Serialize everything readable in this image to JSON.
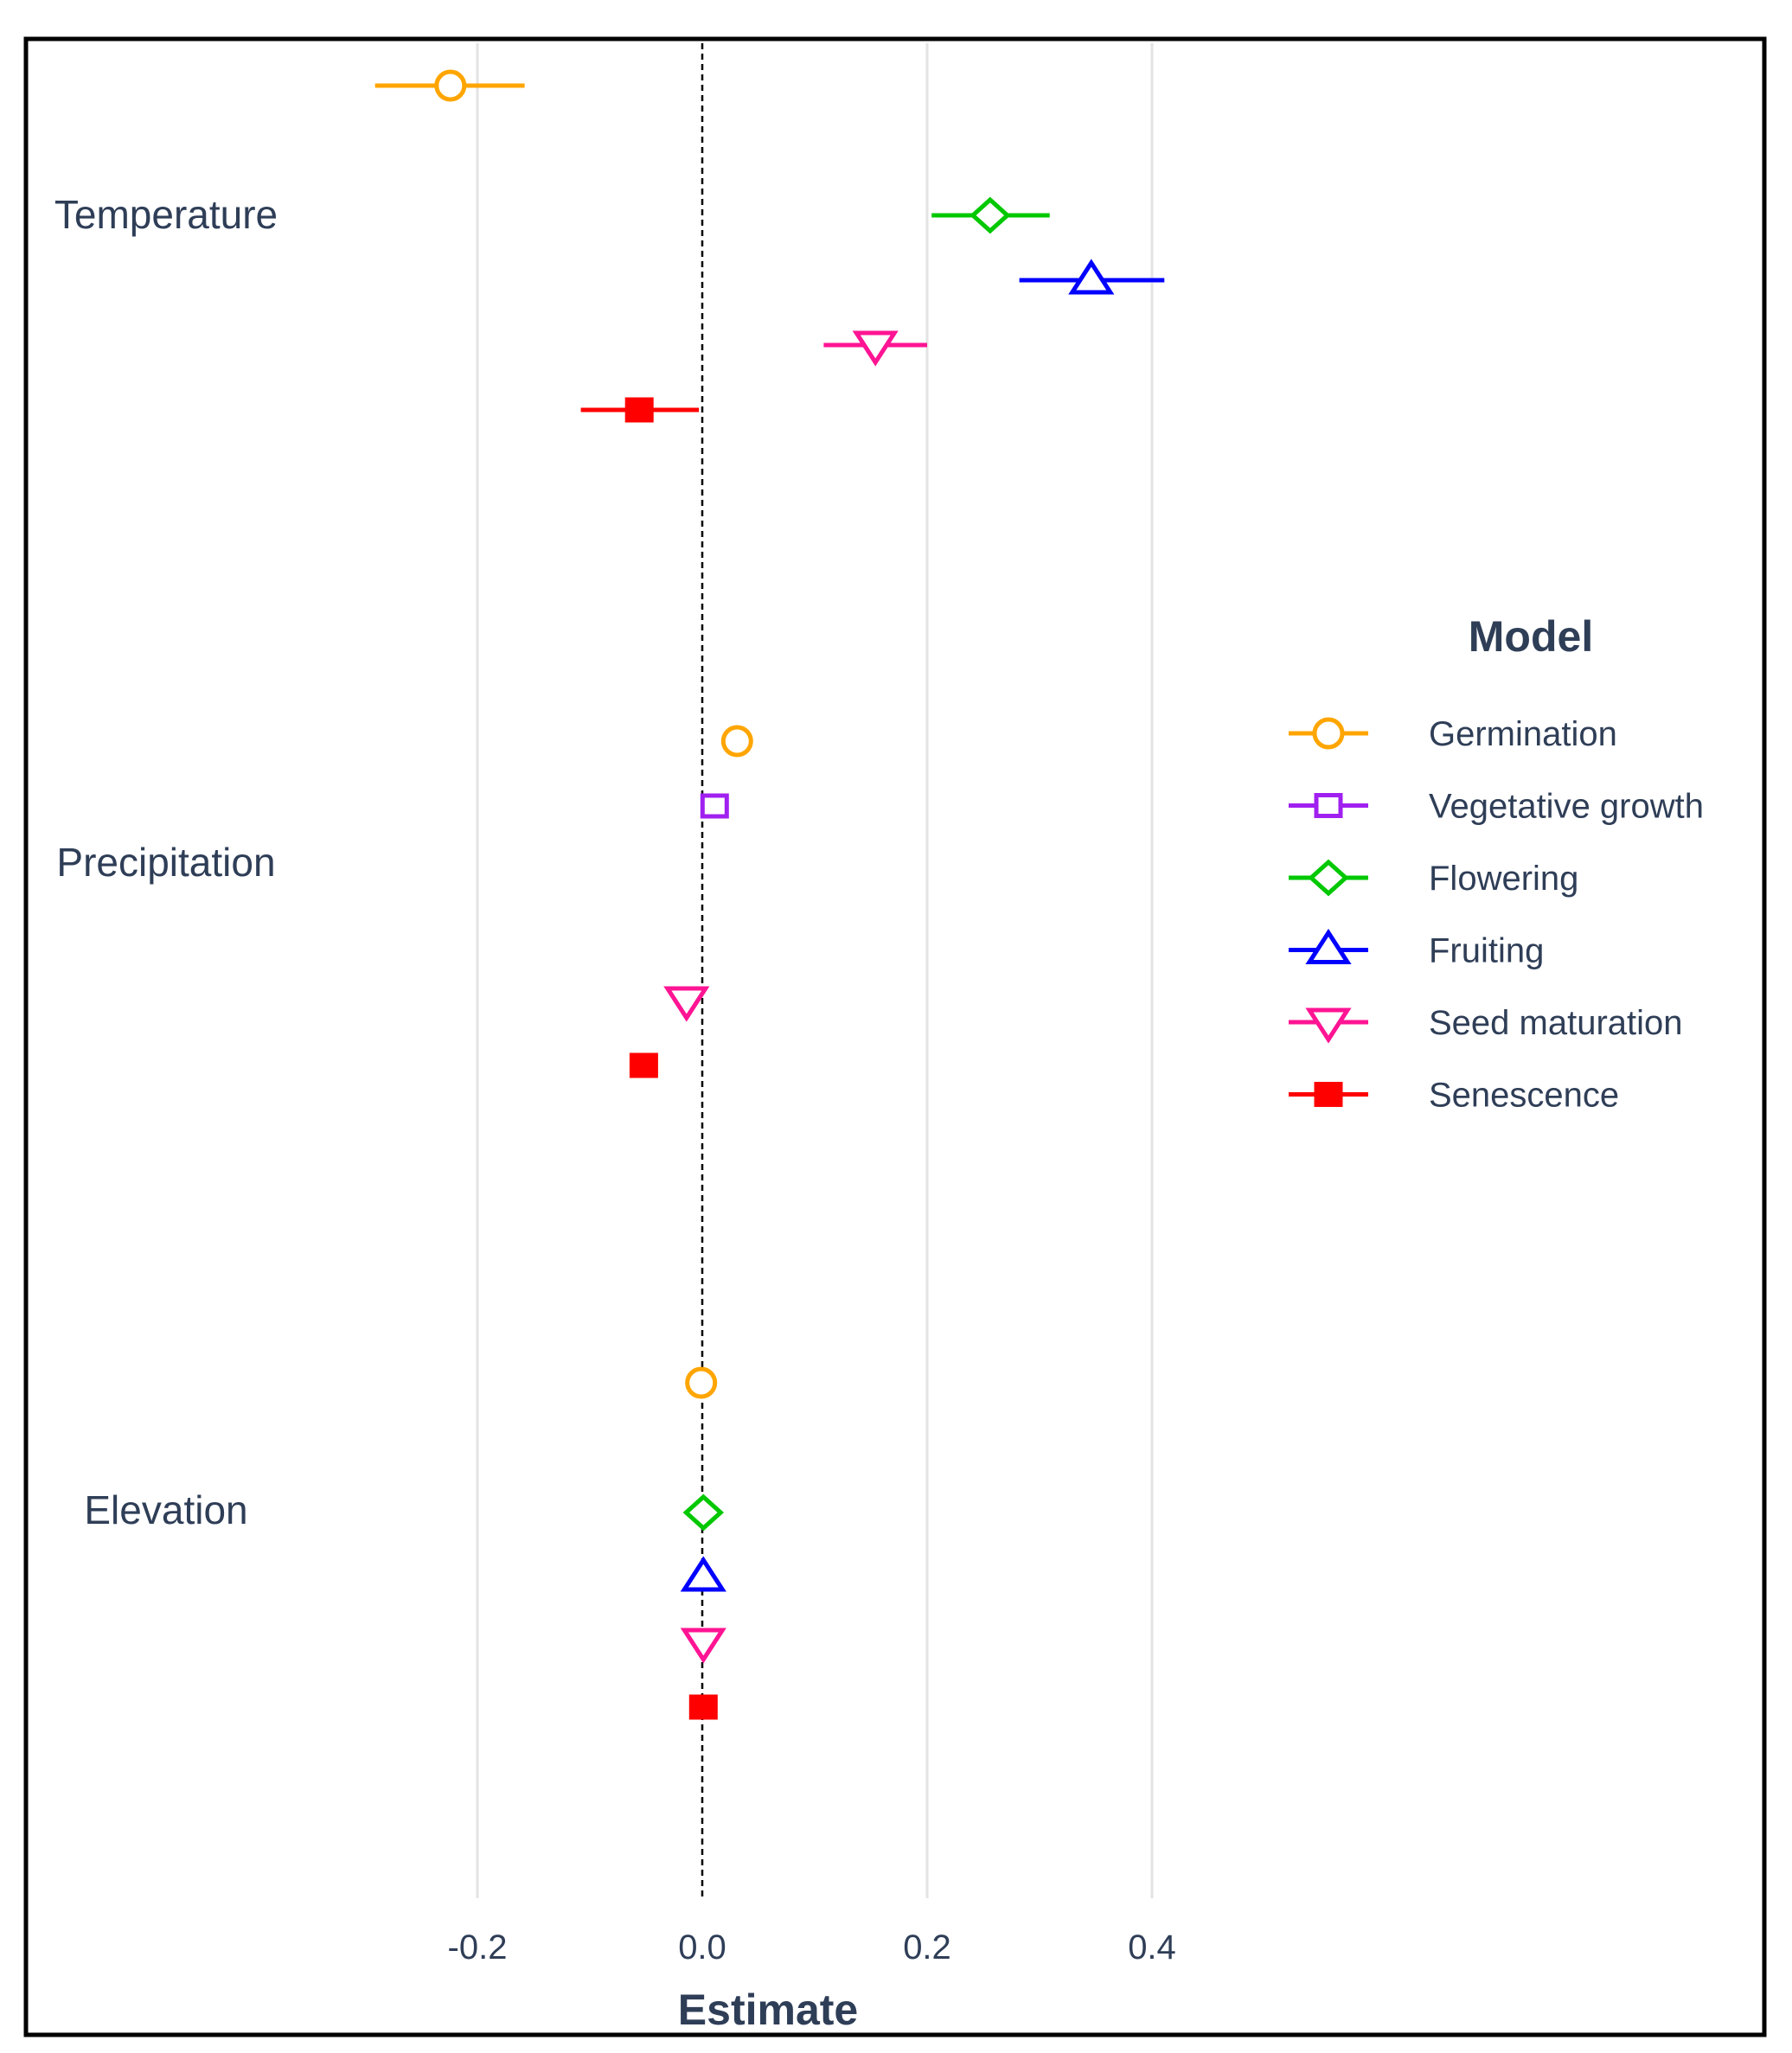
{
  "chart_data": {
    "type": "forest",
    "title": "",
    "xlabel": "Estimate",
    "ylabel": "",
    "xlim": [
      -0.5,
      0.5
    ],
    "xticks": [
      -0.2,
      0.0,
      0.2,
      0.4
    ],
    "xtick_labels": [
      "-0.2",
      "0.0",
      "0.2",
      "0.4"
    ],
    "reference_line": 0.0,
    "groups": [
      "Temperature",
      "Precipitation",
      "Elevation"
    ],
    "legend": {
      "title": "Model",
      "placement": "right"
    },
    "series": [
      {
        "name": "Germination",
        "color": "#FFA500",
        "marker": "circle-open"
      },
      {
        "name": "Vegetative growth",
        "color": "#A020F0",
        "marker": "square-open"
      },
      {
        "name": "Flowering",
        "color": "#00C800",
        "marker": "diamond-open"
      },
      {
        "name": "Fruiting",
        "color": "#0000FF",
        "marker": "triangle-up-open"
      },
      {
        "name": "Seed maturation",
        "color": "#FF1493",
        "marker": "triangle-down-open"
      },
      {
        "name": "Senescence",
        "color": "#FF0000",
        "marker": "square-filled"
      }
    ],
    "points": [
      {
        "group": "Temperature",
        "series": "Germination",
        "estimate": -0.224,
        "low": -0.291,
        "high": -0.158
      },
      {
        "group": "Temperature",
        "series": "Flowering",
        "estimate": 0.256,
        "low": 0.204,
        "high": 0.309
      },
      {
        "group": "Temperature",
        "series": "Fruiting",
        "estimate": 0.346,
        "low": 0.282,
        "high": 0.411
      },
      {
        "group": "Temperature",
        "series": "Seed maturation",
        "estimate": 0.154,
        "low": 0.108,
        "high": 0.2
      },
      {
        "group": "Temperature",
        "series": "Senescence",
        "estimate": -0.056,
        "low": -0.108,
        "high": -0.003
      },
      {
        "group": "Precipitation",
        "series": "Germination",
        "estimate": 0.031,
        "low": 0.031,
        "high": 0.031
      },
      {
        "group": "Precipitation",
        "series": "Vegetative growth",
        "estimate": 0.011,
        "low": 0.011,
        "high": 0.011
      },
      {
        "group": "Precipitation",
        "series": "Seed maturation",
        "estimate": -0.014,
        "low": -0.014,
        "high": -0.014
      },
      {
        "group": "Precipitation",
        "series": "Senescence",
        "estimate": -0.052,
        "low": -0.052,
        "high": -0.052
      },
      {
        "group": "Elevation",
        "series": "Germination",
        "estimate": -0.001,
        "low": -0.001,
        "high": -0.001
      },
      {
        "group": "Elevation",
        "series": "Flowering",
        "estimate": 0.001,
        "low": 0.001,
        "high": 0.001
      },
      {
        "group": "Elevation",
        "series": "Fruiting",
        "estimate": 0.001,
        "low": 0.001,
        "high": 0.001
      },
      {
        "group": "Elevation",
        "series": "Seed maturation",
        "estimate": 0.001,
        "low": 0.001,
        "high": 0.001
      },
      {
        "group": "Elevation",
        "series": "Senescence",
        "estimate": 0.001,
        "low": 0.001,
        "high": 0.001
      }
    ]
  }
}
